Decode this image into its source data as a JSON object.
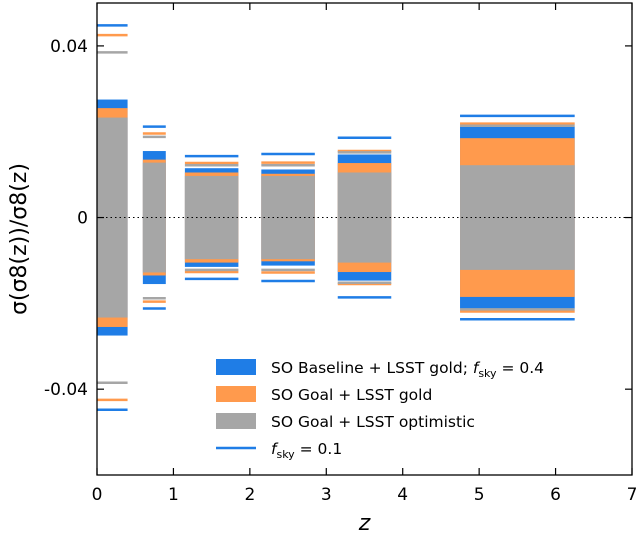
{
  "chart_data": {
    "type": "bar",
    "xlabel": "z",
    "ylabel": "σ(σ8(z))/σ8(z)",
    "xlim": [
      0,
      7
    ],
    "ylim": [
      -0.06,
      0.05
    ],
    "xticks": [
      0,
      1,
      2,
      3,
      4,
      5,
      6,
      7
    ],
    "xtick_labels": [
      "0",
      "1",
      "2",
      "3",
      "4",
      "5",
      "6",
      "7"
    ],
    "yticks": [
      0.04,
      0,
      -0.04
    ],
    "ytick_labels": [
      "0.04",
      "0",
      "-0.04"
    ],
    "zero_line": "dotted",
    "grid": false,
    "legend_position": "lower-right",
    "bins": [
      {
        "z_min": 0.0,
        "z_max": 0.4
      },
      {
        "z_min": 0.6,
        "z_max": 0.9
      },
      {
        "z_min": 1.15,
        "z_max": 1.85
      },
      {
        "z_min": 2.15,
        "z_max": 2.85
      },
      {
        "z_min": 3.15,
        "z_max": 3.85
      },
      {
        "z_min": 4.75,
        "z_max": 6.25
      }
    ],
    "series": [
      {
        "name": "SO Baseline + LSST gold; f_sky = 0.4",
        "color": "#1f7de6",
        "style": "band",
        "values": [
          0.0275,
          0.0155,
          0.0115,
          0.0112,
          0.0147,
          0.0212
        ]
      },
      {
        "name": "SO Goal + LSST gold",
        "color": "#ff9a4d",
        "style": "band",
        "values": [
          0.0255,
          0.0135,
          0.0105,
          0.0102,
          0.0127,
          0.0185
        ]
      },
      {
        "name": "SO Goal + LSST optimistic",
        "color": "#a6a6a6",
        "style": "band",
        "values": [
          0.0233,
          0.0128,
          0.0097,
          0.0097,
          0.0105,
          0.0122
        ]
      },
      {
        "name": "f_sky = 0.1",
        "style": "lines",
        "colors": [
          "#1f7de6",
          "#ff9a4d",
          "#a6a6a6"
        ],
        "values": [
          [
            0.0448,
            0.0212,
            0.0143,
            0.0148,
            0.0186,
            0.0237
          ],
          [
            0.0425,
            0.0196,
            0.0127,
            0.0128,
            0.0155,
            0.0219
          ],
          [
            0.0385,
            0.0188,
            0.0122,
            0.0122,
            0.0152,
            0.0214
          ]
        ]
      }
    ]
  },
  "legend": {
    "entries": [
      {
        "name_main": "SO Baseline + LSST gold; ",
        "name_math": "f",
        "name_sub": "sky",
        "name_tail": " = 0.4",
        "color": "#1f7de6",
        "swatch": "band"
      },
      {
        "name_main": "SO Goal + LSST gold",
        "name_math": "",
        "name_sub": "",
        "name_tail": "",
        "color": "#ff9a4d",
        "swatch": "band"
      },
      {
        "name_main": "SO Goal + LSST optimistic",
        "name_math": "",
        "name_sub": "",
        "name_tail": "",
        "color": "#a6a6a6",
        "swatch": "band"
      },
      {
        "name_main": "",
        "name_math": "f",
        "name_sub": "sky",
        "name_tail": " = 0.1",
        "color": "#1f7de6",
        "swatch": "line"
      }
    ]
  }
}
